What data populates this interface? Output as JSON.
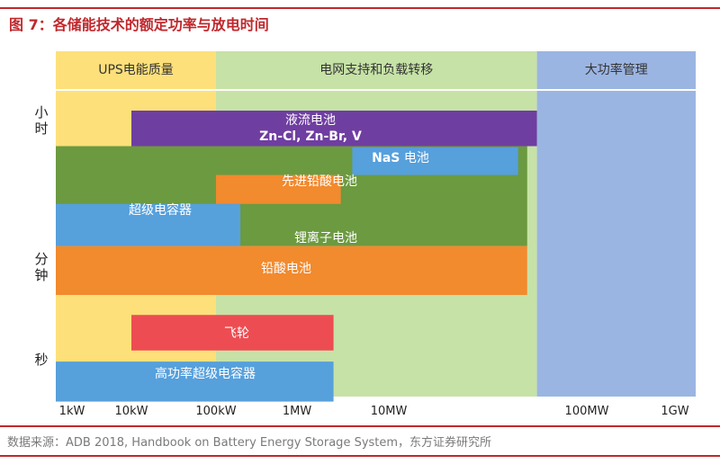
{
  "title": "图 7：各储能技术的额定功率与放电时间",
  "source": "数据来源：ADB 2018, Handbook on Battery Energy Storage System，东方证券研究所",
  "colors": {
    "accent": "#c0282d",
    "zone_ups": "#fde07a",
    "zone_grid": "#c6e2a6",
    "zone_bulk": "#9bb5e2",
    "flow": "#6f3ea1",
    "nas": "#56a0dc",
    "advanced_lead": "#f28a2e",
    "supercap": "#56a0dc",
    "li_ion": "#6c9a40",
    "lead_acid": "#f28a2e",
    "flywheel": "#ed4d52",
    "hp_supercap": "#56a0dc"
  },
  "chart_data": {
    "type": "bar",
    "orientation": "horizontal-range",
    "x_scale": "log",
    "x_ticks": [
      "1kW",
      "10kW",
      "100kW",
      "1MW",
      "10MW",
      "100MW",
      "1GW"
    ],
    "x_tick_values_kw": [
      1,
      10,
      100,
      1000,
      10000,
      100000,
      1000000
    ],
    "y_labels": [
      {
        "id": "hours",
        "text": "小\n时"
      },
      {
        "id": "minutes",
        "text": "分\n钟"
      },
      {
        "id": "seconds",
        "text": "秒"
      }
    ],
    "zones": [
      {
        "label": "UPS电能质量",
        "from_kw": 1,
        "to_kw": 100,
        "color_key": "zone_ups"
      },
      {
        "label": "电网支持和负载转移",
        "from_kw": 100,
        "to_kw": 56000,
        "color_key": "zone_grid"
      },
      {
        "label": "大功率管理",
        "from_kw": 56000,
        "to_kw": 1000000,
        "color_key": "zone_bulk"
      }
    ],
    "series": [
      {
        "name": "锂离子电池",
        "power_from_kw": 1,
        "power_to_kw": 50000,
        "row_from": 1.6,
        "row_to": 6.1,
        "color_key": "li_ion"
      },
      {
        "name": "液流电池",
        "sublabel": "Zn-Cl, Zn-Br, V",
        "power_from_kw": 10,
        "power_to_kw": 56000,
        "row_from": 0,
        "row_to": 1.6,
        "color_key": "flow"
      },
      {
        "name": "NaS 电池",
        "power_from_kw": 4000,
        "power_to_kw": 45000,
        "row_from": 1.65,
        "row_to": 2.9,
        "color_key": "nas"
      },
      {
        "name": "先进铅酸电池",
        "power_from_kw": 100,
        "power_to_kw": 3000,
        "row_from": 2.9,
        "row_to": 4.2,
        "color_key": "advanced_lead"
      },
      {
        "name": "超级电容器",
        "power_from_kw": 1,
        "power_to_kw": 200,
        "row_from": 4.2,
        "row_to": 6.1,
        "color_key": "supercap"
      },
      {
        "name": "铅酸电池",
        "power_from_kw": 1,
        "power_to_kw": 50000,
        "row_from": 6.1,
        "row_to": 8.3,
        "color_key": "lead_acid"
      },
      {
        "name": "飞轮",
        "power_from_kw": 10,
        "power_to_kw": 2500,
        "row_from": 9.2,
        "row_to": 10.8,
        "color_key": "flywheel"
      },
      {
        "name": "高功率超级电容器",
        "power_from_kw": 1,
        "power_to_kw": 2500,
        "row_from": 11.3,
        "row_to": 13.1,
        "color_key": "hp_supercap"
      }
    ]
  }
}
